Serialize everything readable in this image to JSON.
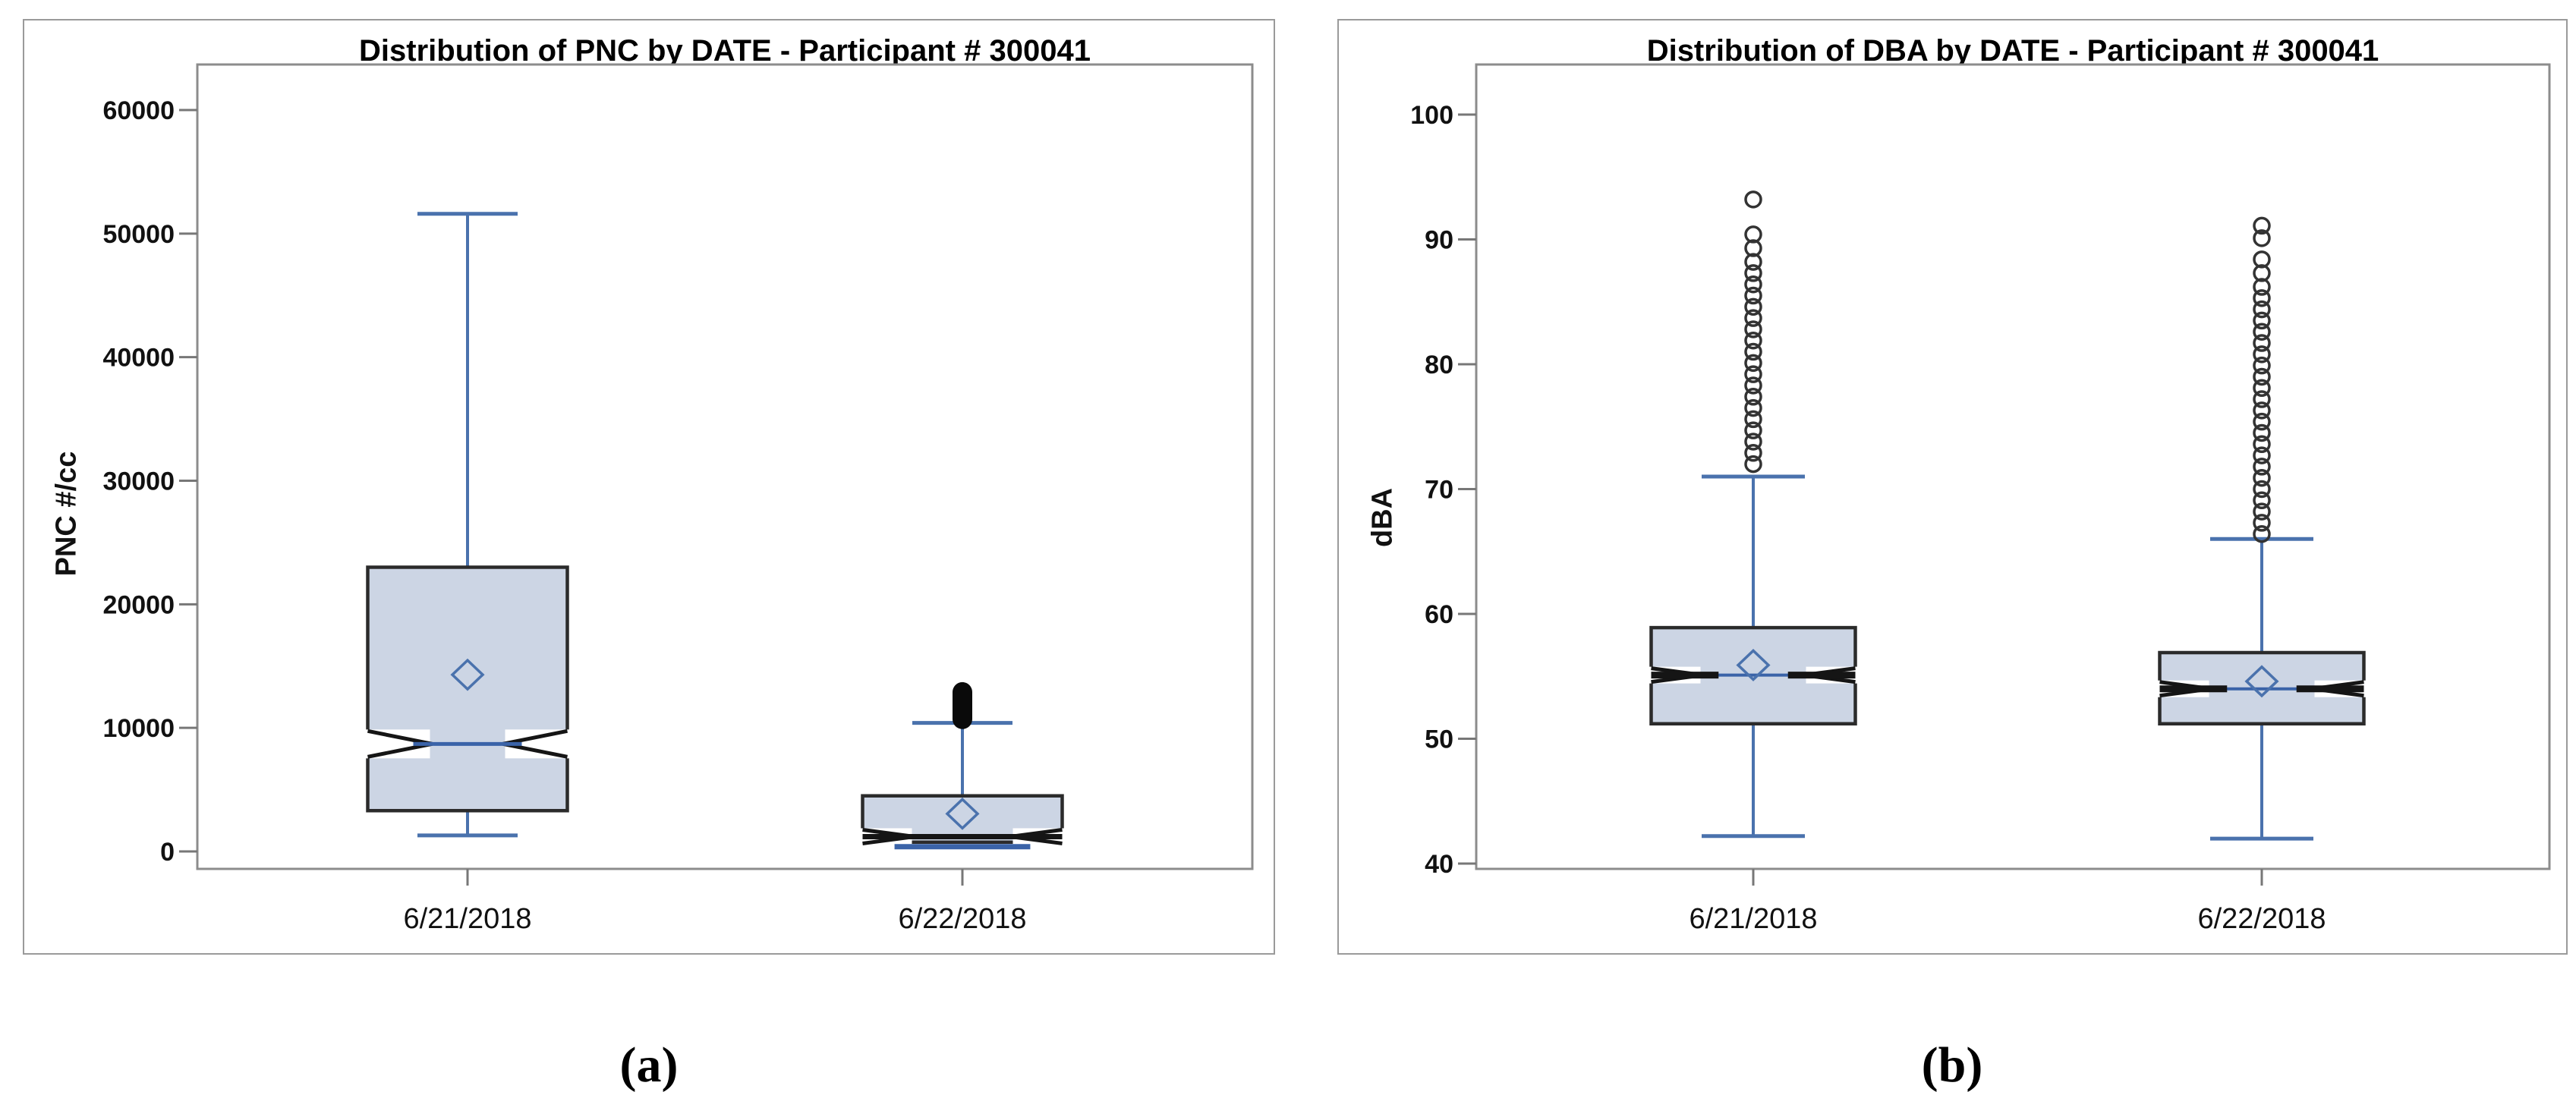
{
  "figure": {
    "captions": [
      {
        "label": "(a)"
      },
      {
        "label": "(b)"
      }
    ]
  },
  "colors": {
    "box_fill": "#ccd5e4",
    "box_border": "#2b2b2b",
    "whisker": "#4a72ad",
    "median_blue": "#3a63a8",
    "median_black": "#151515",
    "mean_diamond": "#4a72ad",
    "outlier_stroke": "#333333",
    "outlier_bar_fill": "#0a0a0a",
    "frame": "#8c8c8c",
    "tick": "#777777",
    "text": "#111111"
  },
  "chart_data": [
    {
      "type": "box",
      "title": "Distribution of PNC by DATE - Participant # 300041",
      "xlabel": "",
      "ylabel": "PNC #/cc",
      "ylim": [
        0,
        60000
      ],
      "yticks": [
        60000,
        50000,
        40000,
        30000,
        20000,
        10000,
        0
      ],
      "categories": [
        "6/21/2018",
        "6/22/2018"
      ],
      "grid": false,
      "legend_position": "none",
      "series": [
        {
          "category": "6/21/2018",
          "whisker_low": 1300,
          "q1": 3300,
          "median": 8700,
          "q3": 23000,
          "whisker_high": 51600,
          "mean": 14300,
          "notched": true,
          "median_style": "blue-wedge",
          "outliers": [],
          "outlier_bar": null,
          "notch_fold_low": null
        },
        {
          "category": "6/22/2018",
          "whisker_low": null,
          "q1": 750,
          "median": 1200,
          "q3": 4500,
          "whisker_high": 10400,
          "mean": 3050,
          "notched": true,
          "median_style": "black",
          "outliers": [],
          "outlier_bar": {
            "from": 9900,
            "to": 13700
          },
          "notch_fold_low": 380
        }
      ]
    },
    {
      "type": "box",
      "title": "Distribution of DBA by DATE - Participant # 300041",
      "xlabel": "",
      "ylabel": "dBA",
      "ylim": [
        40,
        100
      ],
      "yticks": [
        100,
        90,
        80,
        70,
        60,
        50,
        40
      ],
      "categories": [
        "6/21/2018",
        "6/22/2018"
      ],
      "grid": false,
      "legend_position": "none",
      "series": [
        {
          "category": "6/21/2018",
          "whisker_low": 42.2,
          "q1": 51.2,
          "median": 55.1,
          "q3": 58.9,
          "whisker_high": 71.0,
          "mean": 55.9,
          "notched": true,
          "median_style": "black-ends",
          "outliers": [
            72.0,
            72.9,
            73.8,
            74.7,
            75.6,
            76.5,
            77.4,
            78.3,
            79.2,
            80.1,
            81.0,
            81.9,
            82.8,
            83.7,
            84.6,
            85.5,
            86.4,
            87.3,
            88.2,
            89.3,
            90.4,
            93.2
          ],
          "outlier_bar": null,
          "notch_fold_low": null
        },
        {
          "category": "6/22/2018",
          "whisker_low": 42.0,
          "q1": 51.2,
          "median": 54.0,
          "q3": 56.9,
          "whisker_high": 66.0,
          "mean": 54.6,
          "notched": true,
          "median_style": "black-ends",
          "outliers": [
            66.4,
            67.3,
            68.2,
            69.1,
            70.0,
            70.9,
            71.8,
            72.7,
            73.6,
            74.5,
            75.4,
            76.3,
            77.2,
            78.1,
            79.0,
            79.9,
            80.8,
            81.7,
            82.6,
            83.5,
            84.4,
            85.3,
            86.2,
            87.3,
            88.4,
            90.1,
            91.1
          ],
          "outlier_bar": null,
          "notch_fold_low": null
        }
      ]
    }
  ]
}
